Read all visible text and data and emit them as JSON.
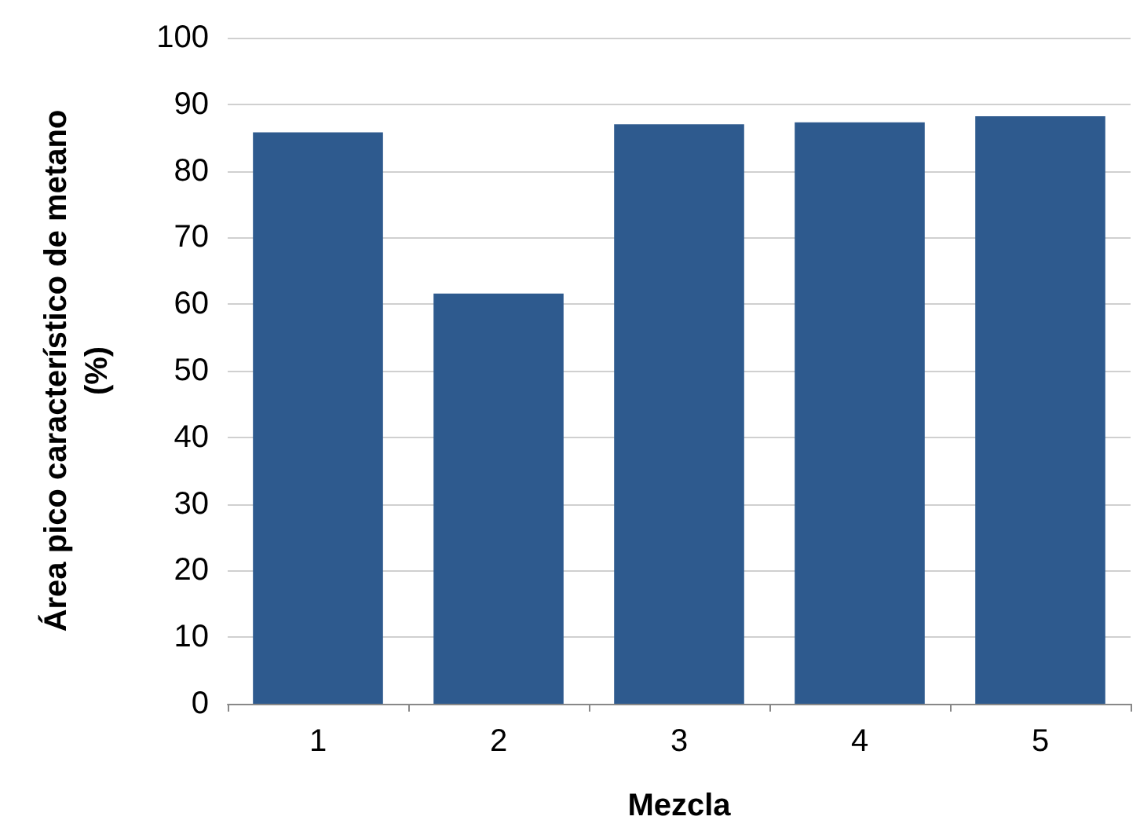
{
  "chart_data": {
    "type": "bar",
    "categories": [
      "1",
      "2",
      "3",
      "4",
      "5"
    ],
    "values": [
      85.8,
      61.6,
      87.0,
      87.3,
      88.2
    ],
    "color": "#2e5a8e",
    "xlabel": "Mezcla",
    "ylabel": "Área pico característico de metano\n(%)",
    "ylim": [
      0,
      100
    ],
    "yticks": [
      0,
      10,
      20,
      30,
      40,
      50,
      60,
      70,
      80,
      90,
      100
    ],
    "grid": "y"
  }
}
